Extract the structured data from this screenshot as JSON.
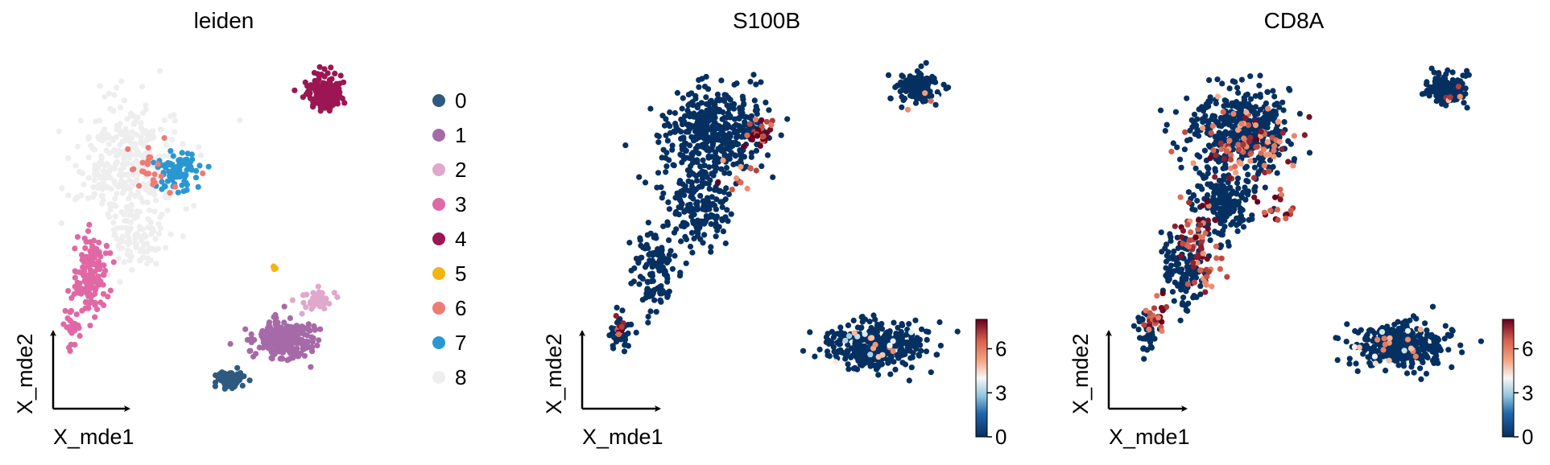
{
  "chart_data": [
    {
      "type": "scatter",
      "title": "leiden",
      "xlabel": "X_mde1",
      "ylabel": "X_mde2",
      "color_mode": "categorical",
      "legend": {
        "placement": "right",
        "entries": [
          {
            "label": "0",
            "color": "#2e5a80"
          },
          {
            "label": "1",
            "color": "#a66aa8"
          },
          {
            "label": "2",
            "color": "#e0a8cc"
          },
          {
            "label": "3",
            "color": "#e068a4"
          },
          {
            "label": "4",
            "color": "#9b1652"
          },
          {
            "label": "5",
            "color": "#f5b310"
          },
          {
            "label": "6",
            "color": "#ee7b74"
          },
          {
            "label": "7",
            "color": "#2b97d2"
          },
          {
            "label": "8",
            "color": "#eeeeee"
          }
        ]
      },
      "clusters": [
        {
          "category": "8",
          "center": [
            2.0,
            6.5
          ],
          "spread": [
            1.3,
            1.4
          ],
          "n": 320
        },
        {
          "category": "8",
          "center": [
            2.4,
            4.4
          ],
          "spread": [
            0.7,
            0.8
          ],
          "n": 90
        },
        {
          "category": "7",
          "center": [
            3.6,
            6.3
          ],
          "spread": [
            0.55,
            0.45
          ],
          "n": 90
        },
        {
          "category": "6",
          "center": [
            2.7,
            6.3
          ],
          "spread": [
            0.9,
            0.6
          ],
          "n": 24
        },
        {
          "category": "3",
          "center": [
            1.0,
            3.4
          ],
          "spread": [
            0.45,
            1.0
          ],
          "n": 140
        },
        {
          "category": "3",
          "center": [
            0.4,
            1.8
          ],
          "spread": [
            0.2,
            0.5
          ],
          "n": 30
        },
        {
          "category": "4",
          "center": [
            7.9,
            8.5
          ],
          "spread": [
            0.42,
            0.42
          ],
          "n": 170
        },
        {
          "category": "5",
          "center": [
            6.4,
            3.6
          ],
          "spread": [
            0.05,
            0.06
          ],
          "n": 5
        },
        {
          "category": "0",
          "center": [
            5.1,
            0.5
          ],
          "spread": [
            0.35,
            0.2
          ],
          "n": 90
        },
        {
          "category": "1",
          "center": [
            6.7,
            1.6
          ],
          "spread": [
            0.75,
            0.45
          ],
          "n": 260
        },
        {
          "category": "2",
          "center": [
            7.7,
            2.7
          ],
          "spread": [
            0.35,
            0.3
          ],
          "n": 50
        }
      ],
      "x_range": [
        -0.5,
        9.5
      ],
      "y_range": [
        -0.5,
        9.5
      ]
    },
    {
      "type": "scatter",
      "title": "S100B",
      "xlabel": "X_mde1",
      "ylabel": "X_mde2",
      "color_mode": "continuous",
      "colorbar": {
        "ticks": [
          "0",
          "3",
          "6"
        ],
        "tick_values": [
          0,
          3,
          6
        ],
        "range": [
          0,
          8
        ],
        "colormap": "RdBu_r"
      },
      "clusters": [
        {
          "center": [
            3.6,
            7.4
          ],
          "spread": [
            1.2,
            1.0
          ],
          "n": 420
        },
        {
          "center": [
            3.1,
            5.4
          ],
          "spread": [
            0.8,
            0.9
          ],
          "n": 180
        },
        {
          "center": [
            2.0,
            3.5
          ],
          "spread": [
            0.5,
            0.9
          ],
          "n": 120
        },
        {
          "center": [
            1.0,
            1.8
          ],
          "spread": [
            0.25,
            0.5
          ],
          "n": 40
        },
        {
          "center": [
            9.2,
            8.6
          ],
          "spread": [
            0.45,
            0.35
          ],
          "n": 150
        },
        {
          "center": [
            8.0,
            1.4
          ],
          "spread": [
            1.1,
            0.5
          ],
          "n": 380
        }
      ],
      "high_expression": [
        {
          "center": [
            4.8,
            7.4
          ],
          "spread": [
            0.3,
            0.35
          ],
          "n": 30,
          "value": 7.2
        },
        {
          "center": [
            4.4,
            6.2
          ],
          "spread": [
            0.5,
            0.4
          ],
          "n": 10,
          "value": 6.5
        },
        {
          "center": [
            1.0,
            1.9
          ],
          "spread": [
            0.15,
            0.2
          ],
          "n": 10,
          "value": 7.5
        },
        {
          "center": [
            8.0,
            1.3
          ],
          "spread": [
            1.0,
            0.4
          ],
          "n": 18,
          "value": 4.5
        },
        {
          "center": [
            9.3,
            8.3
          ],
          "spread": [
            0.3,
            0.2
          ],
          "n": 4,
          "value": 5
        }
      ],
      "x_range": [
        0.0,
        10.5
      ],
      "y_range": [
        -0.5,
        9.5
      ]
    },
    {
      "type": "scatter",
      "title": "CD8A",
      "xlabel": "X_mde1",
      "ylabel": "X_mde2",
      "color_mode": "continuous",
      "colorbar": {
        "ticks": [
          "0",
          "3",
          "6"
        ],
        "tick_values": [
          0,
          3,
          6
        ],
        "range": [
          0,
          8
        ],
        "colormap": "RdBu_r"
      },
      "clusters": [
        {
          "center": [
            3.6,
            7.4
          ],
          "spread": [
            1.2,
            1.0
          ],
          "n": 420
        },
        {
          "center": [
            3.1,
            5.4
          ],
          "spread": [
            0.8,
            0.9
          ],
          "n": 180
        },
        {
          "center": [
            2.0,
            3.5
          ],
          "spread": [
            0.5,
            0.9
          ],
          "n": 120
        },
        {
          "center": [
            1.0,
            1.8
          ],
          "spread": [
            0.25,
            0.5
          ],
          "n": 40
        },
        {
          "center": [
            9.2,
            8.6
          ],
          "spread": [
            0.45,
            0.35
          ],
          "n": 150
        },
        {
          "center": [
            8.0,
            1.4
          ],
          "spread": [
            1.1,
            0.5
          ],
          "n": 380
        }
      ],
      "high_expression": [
        {
          "center": [
            3.8,
            7.0
          ],
          "spread": [
            1.1,
            0.8
          ],
          "n": 90,
          "value": 6.5
        },
        {
          "center": [
            2.4,
            4.2
          ],
          "spread": [
            0.55,
            0.9
          ],
          "n": 70,
          "value": 7.0
        },
        {
          "center": [
            1.3,
            2.2
          ],
          "spread": [
            0.3,
            0.5
          ],
          "n": 25,
          "value": 7.3
        },
        {
          "center": [
            4.5,
            5.3
          ],
          "spread": [
            0.5,
            0.4
          ],
          "n": 20,
          "value": 7.0
        },
        {
          "center": [
            8.0,
            1.4
          ],
          "spread": [
            1.0,
            0.45
          ],
          "n": 20,
          "value": 4.8
        },
        {
          "center": [
            9.3,
            8.5
          ],
          "spread": [
            0.3,
            0.3
          ],
          "n": 5,
          "value": 6
        }
      ],
      "x_range": [
        0.0,
        10.5
      ],
      "y_range": [
        -0.5,
        9.5
      ]
    }
  ]
}
